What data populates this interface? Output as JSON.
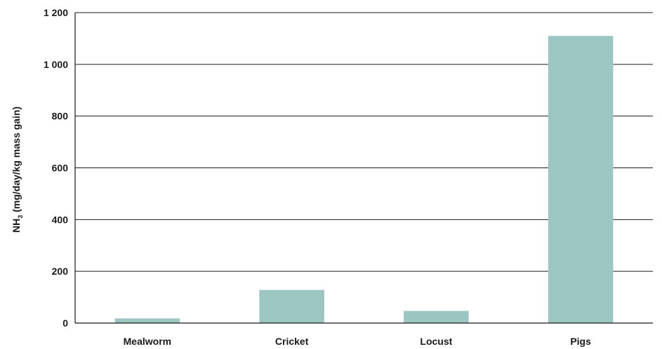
{
  "chart_data": {
    "type": "bar",
    "categories": [
      "Mealworm",
      "Cricket",
      "Locust",
      "Pigs"
    ],
    "values": [
      18,
      128,
      47,
      1110
    ],
    "ylabel": {
      "main": "NH",
      "sub": "3",
      "rest": " (mg/day/kg mass gain)"
    },
    "ylim": [
      0,
      1200
    ],
    "yticks": [
      0,
      200,
      400,
      600,
      800,
      1000,
      1200
    ],
    "ytick_labels": [
      "0",
      "200",
      "400",
      "600",
      "800",
      "1 000",
      "1 200"
    ],
    "grid": true,
    "bar_color": "#9bc6c1"
  }
}
